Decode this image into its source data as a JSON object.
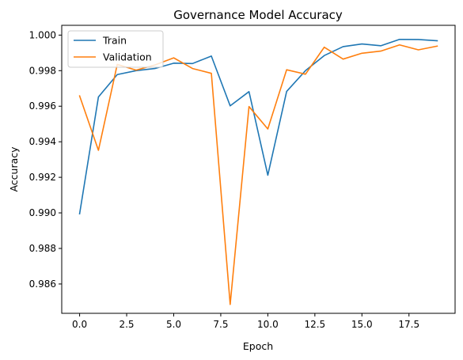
{
  "chart_data": {
    "type": "line",
    "title": "Governance Model Accuracy",
    "xlabel": "Epoch",
    "ylabel": "Accuracy",
    "x": [
      0,
      1,
      2,
      3,
      4,
      5,
      6,
      7,
      8,
      9,
      10,
      11,
      12,
      13,
      14,
      15,
      16,
      17,
      18,
      19
    ],
    "xlim": [
      -0.95,
      19.95
    ],
    "ylim": [
      0.98435,
      1.00055
    ],
    "xticks": [
      0.0,
      2.5,
      5.0,
      7.5,
      10.0,
      12.5,
      15.0,
      17.5
    ],
    "xtick_labels": [
      "0.0",
      "2.5",
      "5.0",
      "7.5",
      "10.0",
      "12.5",
      "15.0",
      "17.5"
    ],
    "yticks": [
      0.986,
      0.988,
      0.99,
      0.992,
      0.994,
      0.996,
      0.998,
      1.0
    ],
    "ytick_labels": [
      "0.986",
      "0.988",
      "0.990",
      "0.992",
      "0.994",
      "0.996",
      "0.998",
      "1.000"
    ],
    "grid": false,
    "legend_position": "top-left",
    "series": [
      {
        "name": "Train",
        "color": "#1f77b4",
        "values": [
          0.98995,
          0.99652,
          0.99778,
          0.998,
          0.99812,
          0.99842,
          0.9984,
          0.99882,
          0.99602,
          0.99682,
          0.99212,
          0.99683,
          0.998,
          0.99885,
          0.99935,
          0.9995,
          0.9994,
          0.99976,
          0.99975,
          0.99968
        ]
      },
      {
        "name": "Validation",
        "color": "#ff7f0e",
        "values": [
          0.99658,
          0.99352,
          0.99835,
          0.99803,
          0.99832,
          0.99872,
          0.99812,
          0.99785,
          0.98485,
          0.99598,
          0.99472,
          0.99805,
          0.9978,
          0.99932,
          0.99865,
          0.99898,
          0.9991,
          0.99945,
          0.99917,
          0.99938
        ]
      }
    ]
  }
}
